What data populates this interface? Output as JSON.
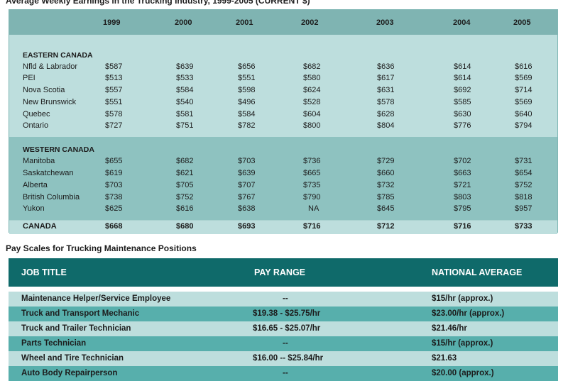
{
  "table1": {
    "title": "Average Weekly Earnings in the Trucking Industry, 1999-2005 (CURRENT $)",
    "years": [
      "1999",
      "2000",
      "2001",
      "2002",
      "2003",
      "2004",
      "2005"
    ],
    "sections": [
      {
        "name": "EASTERN CANADA",
        "rows": [
          {
            "label": "Nfld & Labrador",
            "values": [
              "$587",
              "$639",
              "$656",
              "$682",
              "$636",
              "$614",
              "$616"
            ]
          },
          {
            "label": "PEI",
            "values": [
              "$513",
              "$533",
              "$551",
              "$580",
              "$617",
              "$614",
              "$569"
            ]
          },
          {
            "label": "Nova Scotia",
            "values": [
              "$557",
              "$584",
              "$598",
              "$624",
              "$631",
              "$692",
              "$714"
            ]
          },
          {
            "label": "New Brunswick",
            "values": [
              "$551",
              "$540",
              "$496",
              "$528",
              "$578",
              "$585",
              "$569"
            ]
          },
          {
            "label": "Quebec",
            "values": [
              "$578",
              "$581",
              "$584",
              "$604",
              "$628",
              "$630",
              "$640"
            ]
          },
          {
            "label": "Ontario",
            "values": [
              "$727",
              "$751",
              "$782",
              "$800",
              "$804",
              "$776",
              "$794"
            ]
          }
        ]
      },
      {
        "name": "WESTERN CANADA",
        "rows": [
          {
            "label": "Manitoba",
            "values": [
              "$655",
              "$682",
              "$703",
              "$736",
              "$729",
              "$702",
              "$731"
            ]
          },
          {
            "label": "Saskatchewan",
            "values": [
              "$619",
              "$621",
              "$639",
              "$665",
              "$660",
              "$663",
              "$654"
            ]
          },
          {
            "label": "Alberta",
            "values": [
              "$703",
              "$705",
              "$707",
              "$735",
              "$732",
              "$721",
              "$752"
            ]
          },
          {
            "label": "British Columbia",
            "values": [
              "$738",
              "$752",
              "$767",
              "$790",
              "$785",
              "$803",
              "$818"
            ]
          },
          {
            "label": "Yukon",
            "values": [
              "$625",
              "$616",
              "$638",
              "NA",
              "$645",
              "$795",
              "$957"
            ]
          }
        ]
      }
    ],
    "total": {
      "label": "CANADA",
      "values": [
        "$668",
        "$680",
        "$693",
        "$716",
        "$712",
        "$716",
        "$733"
      ]
    }
  },
  "table2": {
    "title": "Pay Scales for Trucking Maintenance Positions",
    "headers": [
      "JOB TITLE",
      "PAY RANGE",
      "NATIONAL AVERAGE"
    ],
    "rows": [
      {
        "job": "Maintenance Helper/Service Employee",
        "range": "--",
        "avg": "$15/hr (approx.)"
      },
      {
        "job": "Truck and Transport Mechanic",
        "range": "$19.38 - $25.75/hr",
        "avg": "$23.00/hr (approx.)"
      },
      {
        "job": "Truck and Trailer Technician",
        "range": "$16.65 - $25.07/hr",
        "avg": "$21.46/hr"
      },
      {
        "job": "Parts Technician",
        "range": "--",
        "avg": "$15/hr (approx.)"
      },
      {
        "job": "Wheel and Tire Technician",
        "range": "$16.00 -- $25.84/hr",
        "avg": "$21.63"
      },
      {
        "job": "Auto Body Repairperson",
        "range": "--",
        "avg": "$20.00 (approx.)"
      }
    ]
  }
}
